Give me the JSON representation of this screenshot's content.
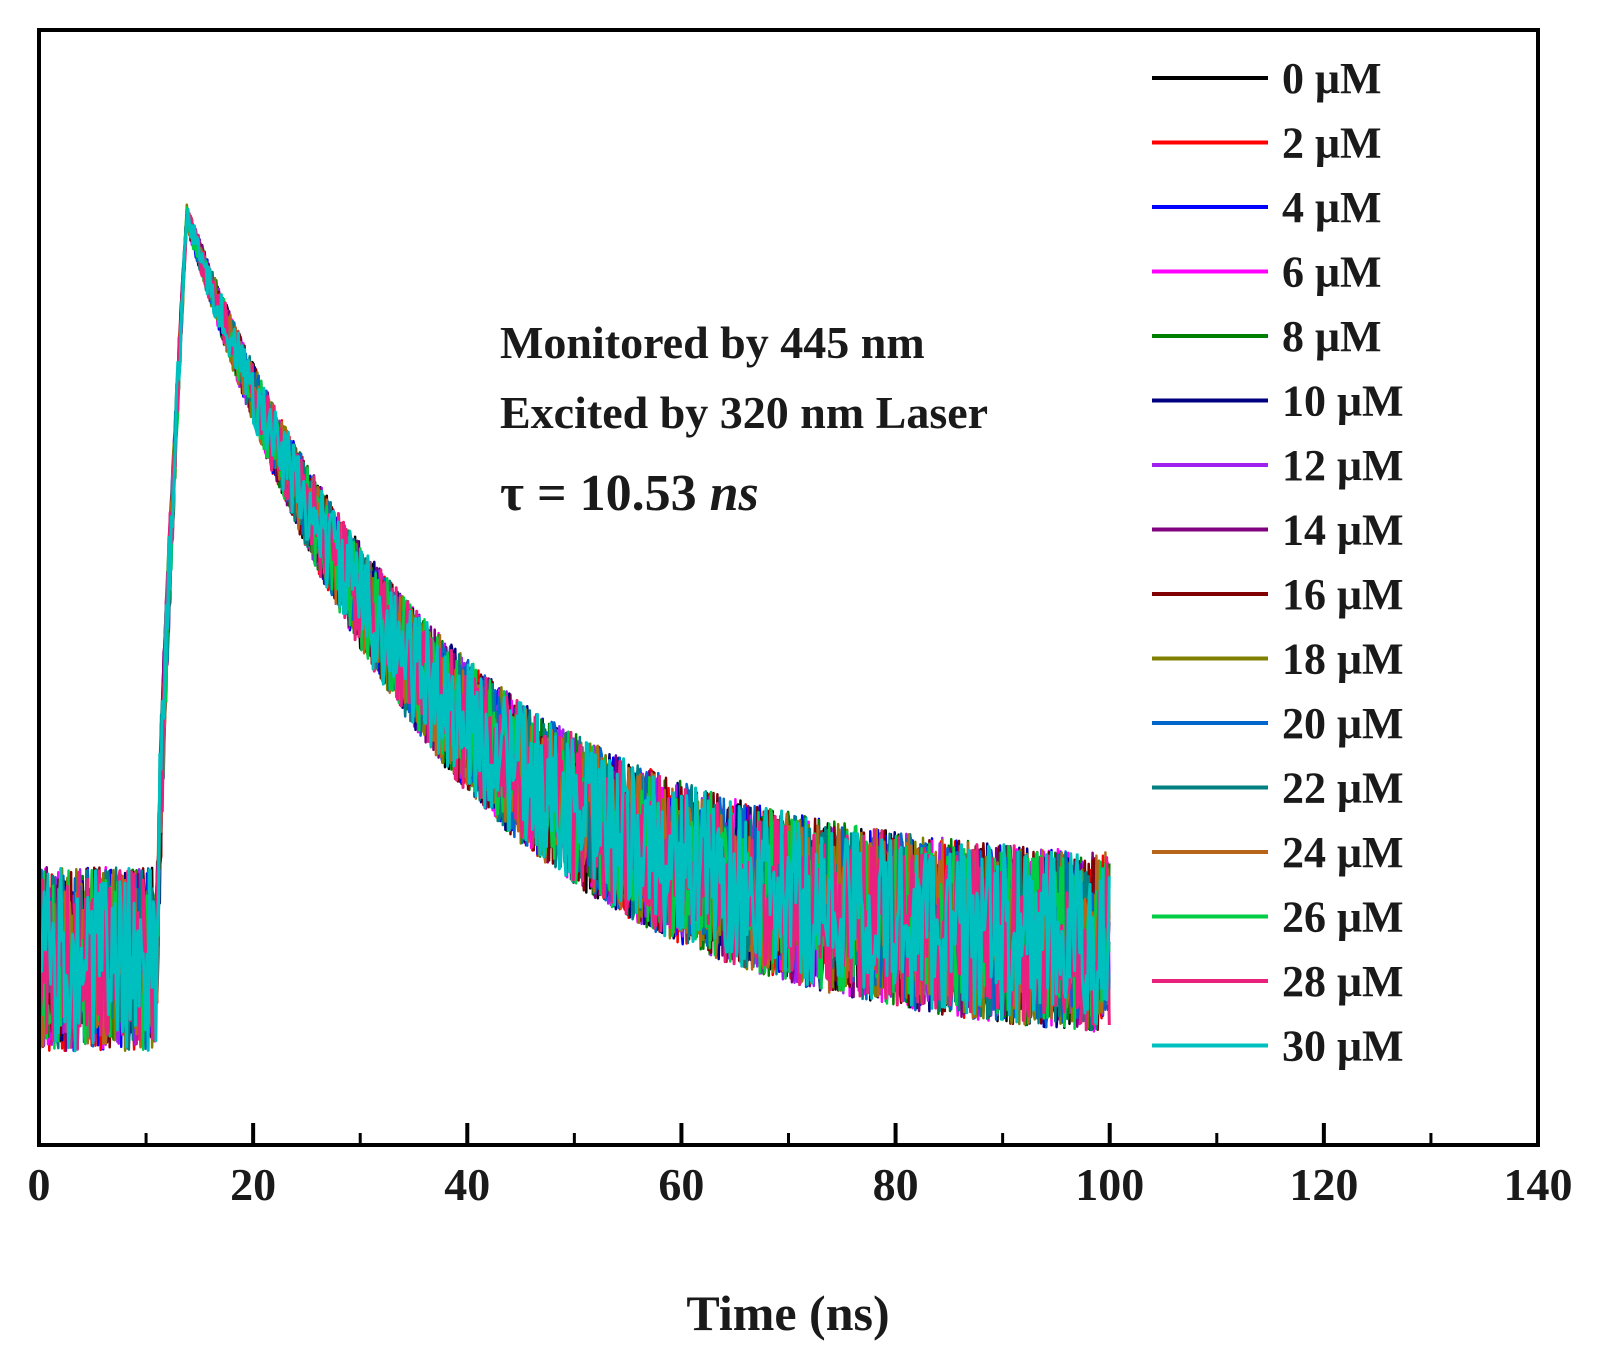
{
  "chart_data": {
    "type": "line",
    "title": "",
    "xlabel": "Time (ns)",
    "ylabel": "",
    "xlim": [
      0,
      140
    ],
    "xticks": [
      0,
      20,
      40,
      60,
      80,
      100,
      120,
      140
    ],
    "ylim": [
      0,
      1.2
    ],
    "grid": false,
    "legend_position": "top-right",
    "decay_model": {
      "baseline": 0.2,
      "rise_start_ns": 11.0,
      "peak_time_ns": 13.8,
      "peak_value": 1.0,
      "lifetime_ns": 10.53,
      "end_time_ns": 100
    },
    "series": [
      {
        "name": "0 μM",
        "color": "#000000"
      },
      {
        "name": "2 μM",
        "color": "#ff0000"
      },
      {
        "name": "4 μM",
        "color": "#0000ff"
      },
      {
        "name": "6 μM",
        "color": "#ff00ff"
      },
      {
        "name": "8 μM",
        "color": "#008000"
      },
      {
        "name": "10 μM",
        "color": "#000080"
      },
      {
        "name": "12 μM",
        "color": "#a020f0"
      },
      {
        "name": "14 μM",
        "color": "#800080"
      },
      {
        "name": "16 μM",
        "color": "#800000"
      },
      {
        "name": "18 μM",
        "color": "#808000"
      },
      {
        "name": "20 μM",
        "color": "#0066cc"
      },
      {
        "name": "22 μM",
        "color": "#008080"
      },
      {
        "name": "24 μM",
        "color": "#b8651b"
      },
      {
        "name": "26 μM",
        "color": "#00cc44"
      },
      {
        "name": "28 μM",
        "color": "#e8207e"
      },
      {
        "name": "30 μM",
        "color": "#00bfbf"
      }
    ],
    "annotations": {
      "monitored": "Monitored by 445 nm",
      "excited": "Excited by 320 nm Laser",
      "tau_prefix": "τ = 10.53 ",
      "tau_unit": "ns"
    }
  }
}
